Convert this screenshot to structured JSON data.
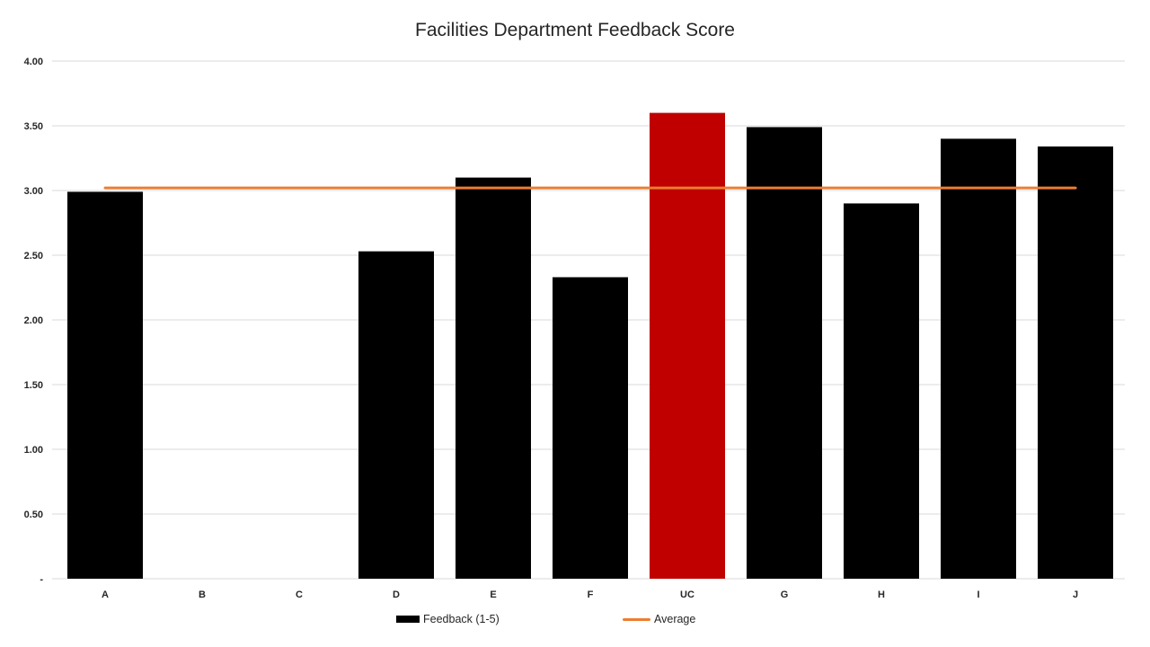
{
  "chart_data": {
    "type": "bar",
    "title": "Facilities Department Feedback Score",
    "categories": [
      "A",
      "B",
      "C",
      "D",
      "E",
      "F",
      "UC",
      "G",
      "H",
      "I",
      "J"
    ],
    "series": [
      {
        "name": "Feedback (1-5)",
        "type": "bar",
        "color": "#000000",
        "values": [
          2.99,
          0,
          0,
          2.53,
          3.1,
          2.33,
          3.6,
          3.49,
          2.9,
          3.4,
          3.34
        ]
      },
      {
        "name": "Average",
        "type": "line",
        "color": "#ED7D31",
        "value": 3.02
      }
    ],
    "highlight": {
      "category": "UC",
      "color": "#C00000"
    },
    "ylim": [
      0,
      4
    ],
    "yticks": [
      {
        "value": 0,
        "label": "-"
      },
      {
        "value": 0.5,
        "label": "0.50"
      },
      {
        "value": 1,
        "label": "1.00"
      },
      {
        "value": 1.5,
        "label": "1.50"
      },
      {
        "value": 2,
        "label": "2.00"
      },
      {
        "value": 2.5,
        "label": "2.50"
      },
      {
        "value": 3,
        "label": "3.00"
      },
      {
        "value": 3.5,
        "label": "3.50"
      },
      {
        "value": 4,
        "label": "4.00"
      }
    ],
    "xlabel": "",
    "ylabel": "",
    "grid": true,
    "gridline_color": "#D9D9D9",
    "legend_position": "bottom"
  }
}
